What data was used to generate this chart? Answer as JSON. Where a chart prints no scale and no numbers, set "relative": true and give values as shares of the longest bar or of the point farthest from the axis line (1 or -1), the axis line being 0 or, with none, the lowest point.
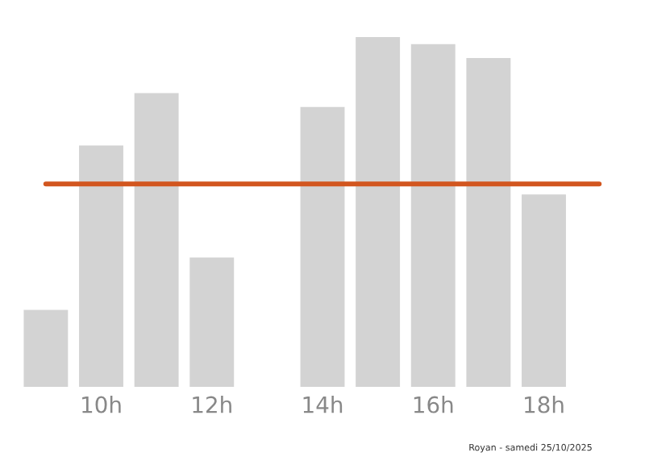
{
  "chart_data": {
    "type": "bar",
    "relative": true,
    "categories": [
      null,
      "10h",
      null,
      "12h",
      null,
      "14h",
      null,
      "16h",
      null,
      "18h",
      null
    ],
    "values": [
      0.22,
      0.69,
      0.84,
      0.37,
      0,
      0.8,
      1,
      0.98,
      0.94,
      0.55,
      0
    ],
    "color": "#d3d3d3",
    "ref_lines": [
      {
        "axis": "y",
        "value": 0.58,
        "label": null,
        "color": "#d2561f"
      }
    ],
    "annotations": [
      "Royan - samedi 25/10/2025"
    ],
    "grid": false,
    "legend": false
  }
}
